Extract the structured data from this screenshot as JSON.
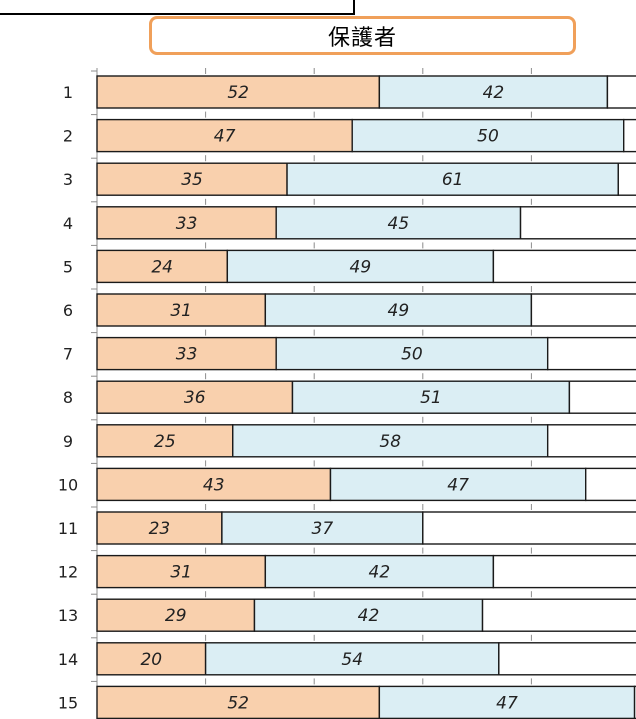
{
  "header": {
    "title": "保護者"
  },
  "colors": {
    "series_1": "#f9d0ad",
    "series_2": "#dbeef4",
    "series_3": "#ffffff",
    "bar_stroke": "#1a1a1a",
    "axis": "#8c8c8c",
    "title_border": "#f0a05a"
  },
  "chart_data": {
    "type": "bar",
    "orientation": "horizontal",
    "stacked": true,
    "categories": [
      "1",
      "2",
      "3",
      "4",
      "5",
      "6",
      "7",
      "8",
      "9",
      "10",
      "11",
      "12",
      "13",
      "14",
      "15"
    ],
    "series": [
      {
        "values": [
          52,
          47,
          35,
          33,
          24,
          31,
          33,
          36,
          25,
          43,
          23,
          31,
          29,
          20,
          52
        ]
      },
      {
        "values": [
          42,
          50,
          61,
          45,
          49,
          49,
          50,
          51,
          58,
          47,
          37,
          42,
          42,
          54,
          47
        ]
      },
      {
        "values": [
          6,
          3,
          4,
          22,
          27,
          20,
          17,
          13,
          17,
          10,
          40,
          27,
          29,
          26,
          1
        ]
      }
    ],
    "data_labels_shown_for_series": [
      0,
      1
    ],
    "xlim": [
      0,
      100
    ],
    "grid": false,
    "legend": "none"
  }
}
